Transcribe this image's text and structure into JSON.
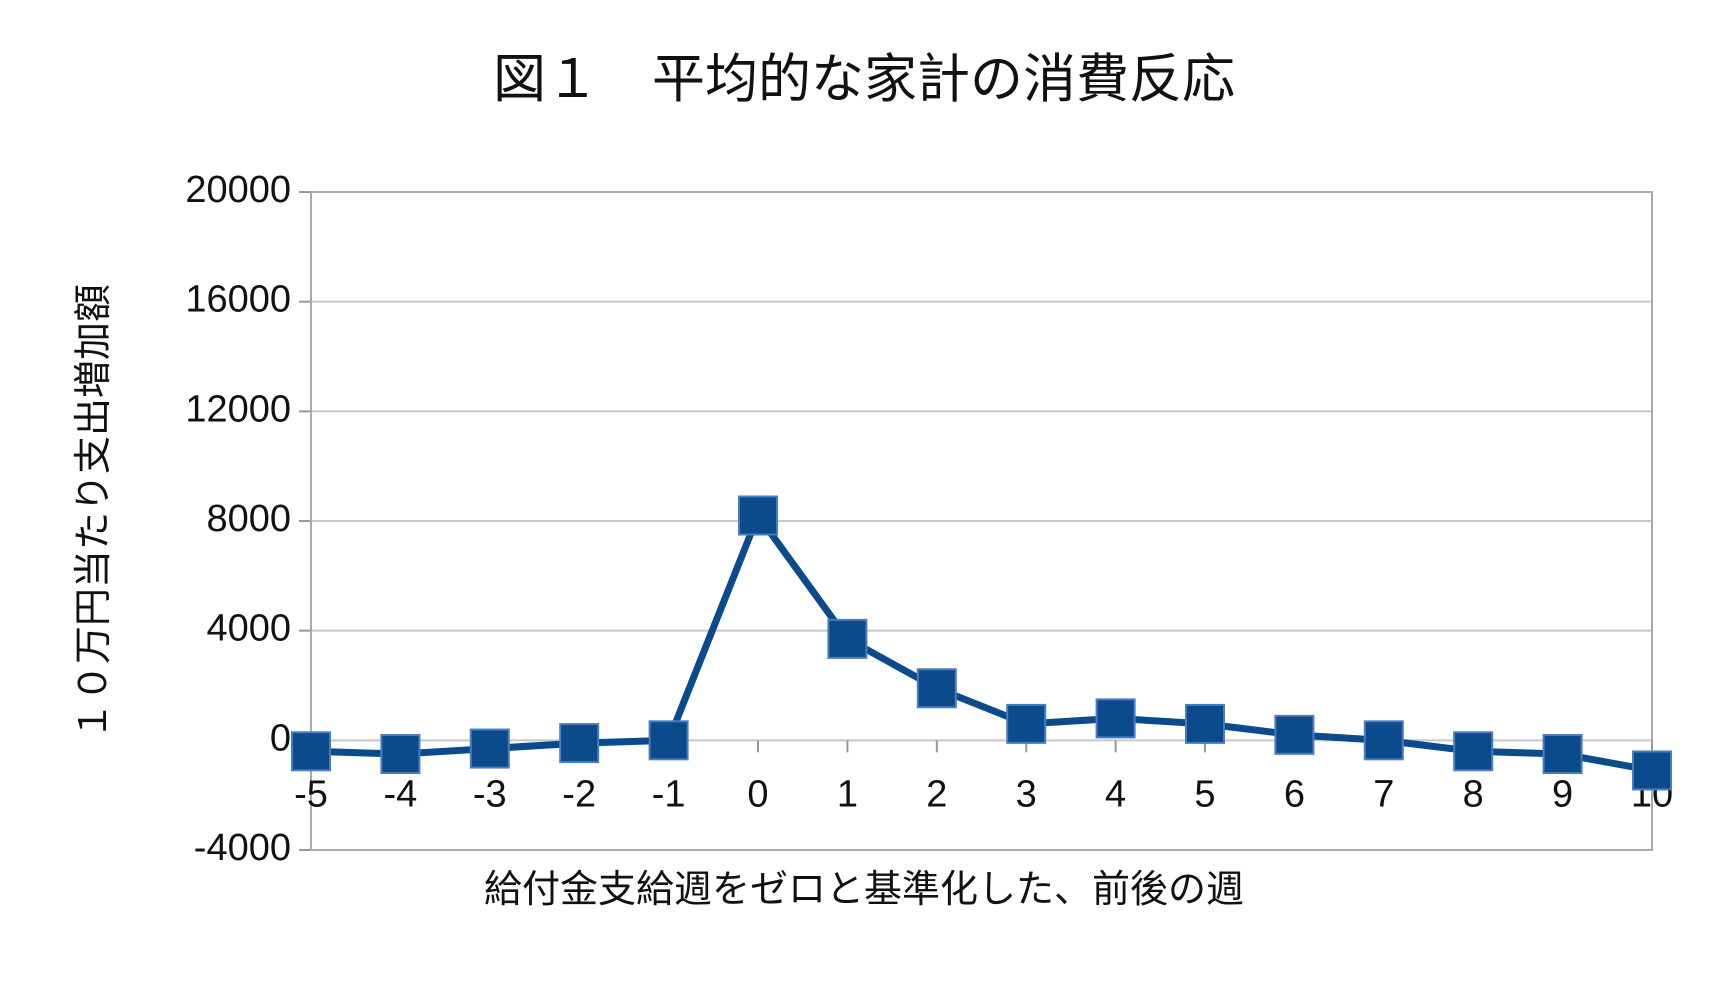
{
  "chart_data": {
    "type": "line",
    "title": "図１　平均的な家計の消費反応",
    "x_label": "給付金支給週をゼロと基準化した、前後の週",
    "y_label": "１０万円当たり支出増加額",
    "x": [
      -5,
      -4,
      -3,
      -2,
      -1,
      0,
      1,
      2,
      3,
      4,
      5,
      6,
      7,
      8,
      9,
      10
    ],
    "series": [
      {
        "name": "平均的な家計",
        "color": "#0b4a8b",
        "values": [
          -400,
          -500,
          -300,
          -100,
          0,
          8200,
          3700,
          1900,
          600,
          800,
          600,
          200,
          0,
          -400,
          -500,
          -1100
        ]
      }
    ],
    "xlim": [
      -5,
      10
    ],
    "xticks": [
      -5,
      -4,
      -3,
      -2,
      -1,
      0,
      1,
      2,
      3,
      4,
      5,
      6,
      7,
      8,
      9,
      10
    ],
    "ylim": [
      -4000,
      20000
    ],
    "yticks": [
      -4000,
      0,
      4000,
      8000,
      12000,
      16000,
      20000
    ],
    "grid": true
  }
}
